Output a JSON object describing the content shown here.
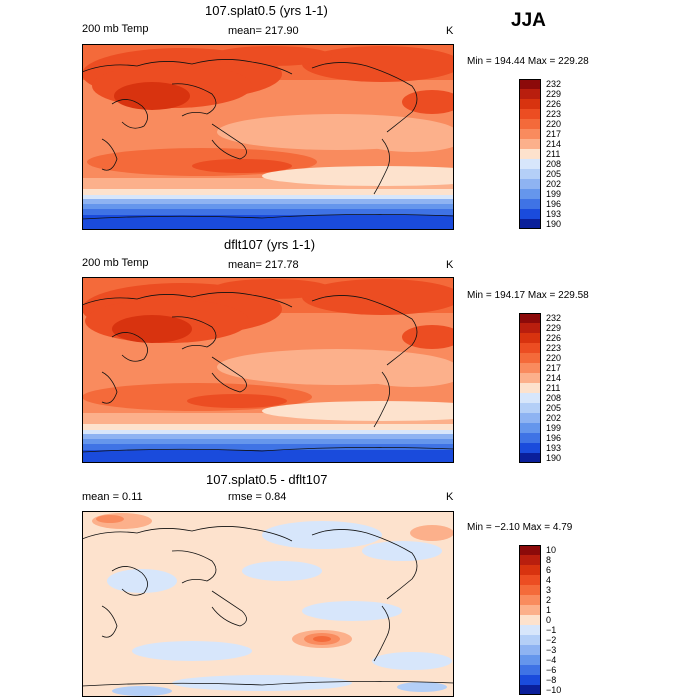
{
  "page": {
    "season": "JJA"
  },
  "panels": [
    {
      "title": "107.splat0.5 (yrs 1-1)",
      "left_label": "200 mb Temp",
      "center_label": "mean= 217.90",
      "units": "K",
      "minmax": "Min = 194.44 Max = 229.28",
      "colorbar": {
        "labels": [
          "232",
          "229",
          "226",
          "223",
          "220",
          "217",
          "214",
          "211",
          "208",
          "205",
          "202",
          "199",
          "196",
          "193",
          "190"
        ],
        "colors": [
          "#8c0a0a",
          "#b91e0e",
          "#d8330f",
          "#ec4d22",
          "#f46a3a",
          "#f98b5e",
          "#fcb08b",
          "#fde2cd",
          "#d7e6fb",
          "#b4cff7",
          "#8eb3f2",
          "#6596ec",
          "#3f73e5",
          "#1a4bdc",
          "#0a1f9a"
        ]
      }
    },
    {
      "title": "dflt107 (yrs 1-1)",
      "left_label": "200 mb Temp",
      "center_label": "mean= 217.78",
      "units": "K",
      "minmax": "Min = 194.17 Max = 229.58",
      "colorbar": {
        "labels": [
          "232",
          "229",
          "226",
          "223",
          "220",
          "217",
          "214",
          "211",
          "208",
          "205",
          "202",
          "199",
          "196",
          "193",
          "190"
        ],
        "colors": [
          "#8c0a0a",
          "#b91e0e",
          "#d8330f",
          "#ec4d22",
          "#f46a3a",
          "#f98b5e",
          "#fcb08b",
          "#fde2cd",
          "#d7e6fb",
          "#b4cff7",
          "#8eb3f2",
          "#6596ec",
          "#3f73e5",
          "#1a4bdc",
          "#0a1f9a"
        ]
      }
    },
    {
      "title": "107.splat0.5 - dflt107",
      "left_label": "mean =    0.11",
      "center_label": "rmse =    0.84",
      "units": "K",
      "minmax": "Min =  −2.10 Max =    4.79",
      "colorbar": {
        "labels": [
          "10",
          "8",
          "6",
          "4",
          "3",
          "2",
          "1",
          "0",
          "−1",
          "−2",
          "−3",
          "−4",
          "−6",
          "−8",
          "−10"
        ],
        "colors": [
          "#8c0a0a",
          "#b91e0e",
          "#d8330f",
          "#ec4d22",
          "#f46a3a",
          "#f98b5e",
          "#fcb08b",
          "#fde2cd",
          "#d7e6fb",
          "#b4cff7",
          "#8eb3f2",
          "#6596ec",
          "#3f73e5",
          "#1a4bdc",
          "#0a1f9a"
        ]
      }
    }
  ]
}
